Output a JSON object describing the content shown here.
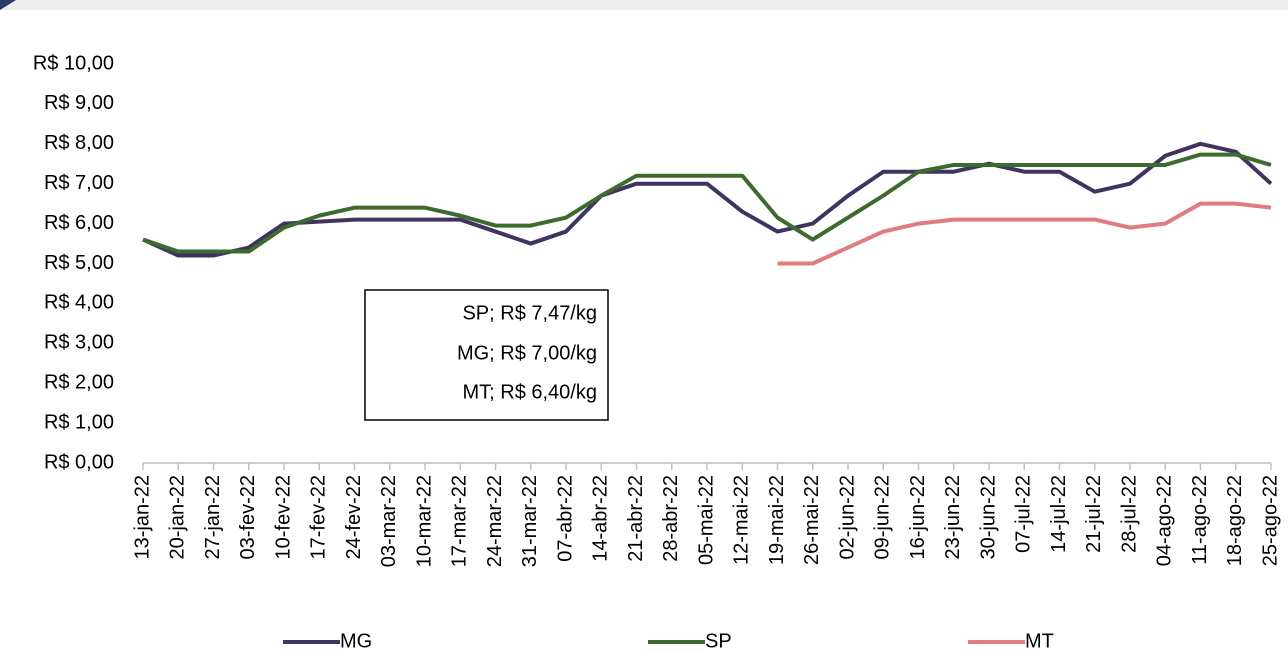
{
  "chart_data": {
    "type": "line",
    "categories": [
      "13-jan-22",
      "20-jan-22",
      "27-jan-22",
      "03-fev-22",
      "10-fev-22",
      "17-fev-22",
      "24-fev-22",
      "03-mar-22",
      "10-mar-22",
      "17-mar-22",
      "24-mar-22",
      "31-mar-22",
      "07-abr-22",
      "14-abr-22",
      "21-abr-22",
      "28-abr-22",
      "05-mai-22",
      "12-mai-22",
      "19-mai-22",
      "26-mai-22",
      "02-jun-22",
      "09-jun-22",
      "16-jun-22",
      "23-jun-22",
      "30-jun-22",
      "07-jul-22",
      "14-jul-22",
      "21-jul-22",
      "28-jul-22",
      "04-ago-22",
      "11-ago-22",
      "18-ago-22",
      "25-ago-22"
    ],
    "series": [
      {
        "name": "MG",
        "color": "#3f3460",
        "values": [
          5.6,
          5.2,
          5.2,
          5.4,
          6.0,
          6.05,
          6.1,
          6.1,
          6.1,
          6.1,
          5.8,
          5.5,
          5.8,
          6.7,
          7.0,
          7.0,
          7.0,
          6.3,
          5.8,
          6.0,
          6.7,
          7.3,
          7.3,
          7.3,
          7.5,
          7.3,
          7.3,
          6.8,
          7.0,
          7.7,
          8.0,
          7.8,
          7.0
        ]
      },
      {
        "name": "SP",
        "color": "#3d6b2e",
        "values": [
          5.6,
          5.3,
          5.3,
          5.3,
          5.9,
          6.2,
          6.4,
          6.4,
          6.4,
          6.2,
          5.95,
          5.95,
          6.15,
          6.7,
          7.2,
          7.2,
          7.2,
          7.2,
          6.15,
          5.6,
          6.15,
          6.7,
          7.3,
          7.47,
          7.47,
          7.47,
          7.47,
          7.47,
          7.47,
          7.47,
          7.73,
          7.73,
          7.47
        ]
      },
      {
        "name": "MT",
        "color": "#e07b80",
        "values": [
          null,
          null,
          null,
          null,
          null,
          null,
          null,
          null,
          null,
          null,
          null,
          null,
          null,
          null,
          null,
          null,
          null,
          null,
          5.0,
          5.0,
          5.4,
          5.8,
          6.0,
          6.1,
          6.1,
          6.1,
          6.1,
          6.1,
          5.9,
          6.0,
          6.5,
          6.5,
          6.4
        ]
      }
    ],
    "ylim": [
      0,
      10
    ],
    "yticks": [
      {
        "value": 0,
        "label": "R$ 0,00"
      },
      {
        "value": 1,
        "label": "R$ 1,00"
      },
      {
        "value": 2,
        "label": "R$ 2,00"
      },
      {
        "value": 3,
        "label": "R$ 3,00"
      },
      {
        "value": 4,
        "label": "R$ 4,00"
      },
      {
        "value": 5,
        "label": "R$ 5,00"
      },
      {
        "value": 6,
        "label": "R$ 6,00"
      },
      {
        "value": 7,
        "label": "R$ 7,00"
      },
      {
        "value": 8,
        "label": "R$ 8,00"
      },
      {
        "value": 9,
        "label": "R$ 9,00"
      },
      {
        "value": 10,
        "label": "R$ 10,00"
      }
    ],
    "annotations": [
      "SP; R$ 7,47/kg",
      "MG; R$ 7,00/kg",
      "MT; R$ 6,40/kg"
    ],
    "grid": false
  }
}
